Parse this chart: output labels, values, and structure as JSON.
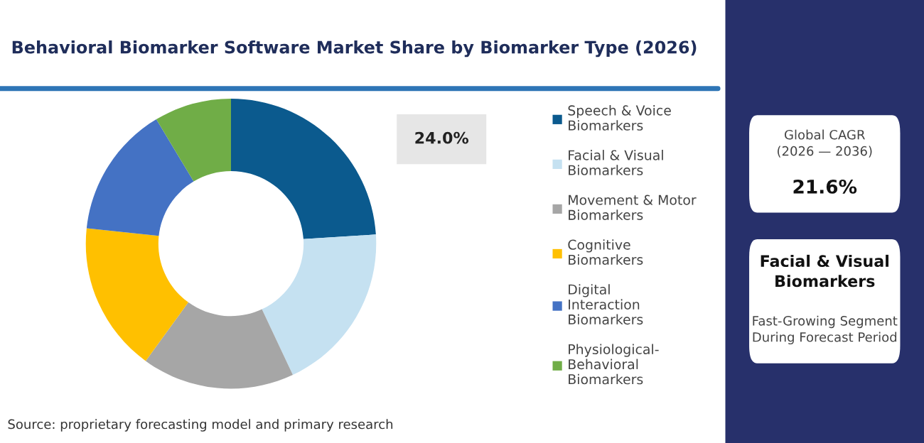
{
  "chart_data": [
    {
      "type": "donut",
      "title": "Behavioral Biomarker Software Market Share by Biomarker Type (2026)",
      "categories": [
        "Speech & Voice Biomarkers",
        "Facial & Visual Biomarkers",
        "Movement & Motor Biomarkers",
        "Cognitive Biomarkers",
        "Digital Interaction Biomarkers",
        "Physiological-Behavioral Biomarkers"
      ],
      "values": [
        24.0,
        19.0,
        17.0,
        16.7,
        14.7,
        8.6
      ],
      "value_labels": [
        "24.0%",
        null,
        null,
        null,
        null,
        null
      ],
      "colors": [
        "#0b5a8e",
        "#c5e1f1",
        "#a6a6a6",
        "#ffc000",
        "#4472c4",
        "#70ad47"
      ],
      "legend": "right",
      "annotations": [
        "Source: proprietary forecasting model and primary research"
      ]
    },
    {
      "type": "other",
      "annotations": [
        "Global CAGR\n(2026 — 2036)",
        "21.6%",
        "Facial & Visual\nBiomarkers",
        "Fast-Growing Segment\nDuring Forecast Period"
      ]
    }
  ]
}
